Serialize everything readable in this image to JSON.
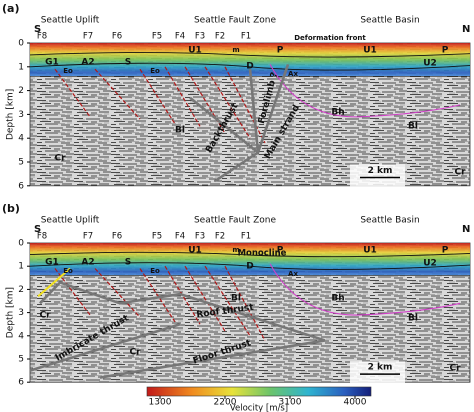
{
  "panels": [
    {
      "label": "(a)",
      "left": "S",
      "right": "N",
      "regions": [
        "Seattle Uplift",
        "Seattle Fault Zone",
        "Seattle Basin"
      ],
      "faults": [
        "F8",
        "F7",
        "F6",
        "F5",
        "F4",
        "F3",
        "F2",
        "F1"
      ],
      "annotations": [
        "Deformation front",
        "U1",
        "m",
        "P",
        "U1",
        "P",
        "G1",
        "A2",
        "S",
        "Eo",
        "Eo",
        "D",
        "Ax",
        "U2",
        "Bh",
        "Bl",
        "Bl",
        "Cr",
        "Cr",
        "Backthrust",
        "Forelimb ?",
        "Main strand"
      ],
      "scale_bar": "2 km"
    },
    {
      "label": "(b)",
      "left": "S",
      "right": "N",
      "regions": [
        "Seattle Uplift",
        "Seattle Fault Zone",
        "Seattle Basin"
      ],
      "faults": [
        "F8",
        "F7",
        "F6",
        "F5",
        "F4",
        "F3",
        "F2",
        "F1"
      ],
      "annotations": [
        "Monocline",
        "U1",
        "m",
        "P",
        "U1",
        "P",
        "G1",
        "A2",
        "S",
        "Eo",
        "Eo",
        "D",
        "Ax",
        "U2",
        "Bh",
        "Bl",
        "Bl",
        "Cr",
        "Cr",
        "Cr",
        "Roof thrust",
        "Imbricate thrust",
        "Floor thrust"
      ],
      "scale_bar": "2 km"
    }
  ],
  "depth_axis": {
    "label": "Depth [km]",
    "ticks": [
      0,
      1,
      2,
      3,
      4,
      5,
      6
    ]
  },
  "colorbar": {
    "label": "Velocity [m/s]",
    "ticks": [
      1300,
      2200,
      3100,
      4000
    ]
  }
}
